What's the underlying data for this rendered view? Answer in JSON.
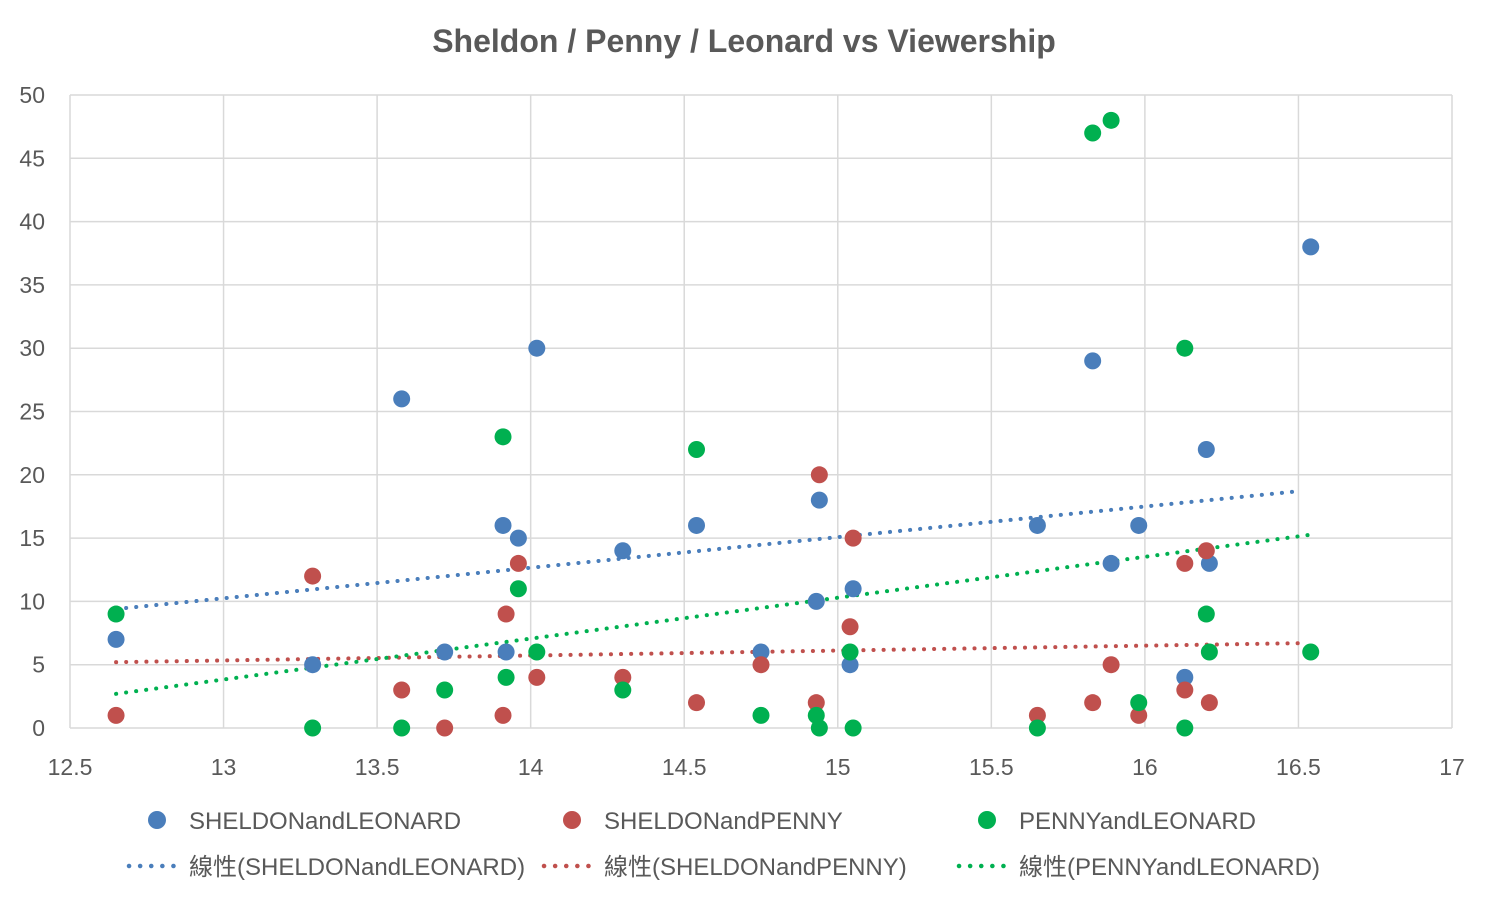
{
  "chart_data": {
    "type": "scatter",
    "title": "Sheldon / Penny / Leonard vs Viewership",
    "xlabel": "",
    "ylabel": "",
    "xlim": [
      12.5,
      17
    ],
    "ylim": [
      0,
      50
    ],
    "xticks": [
      "12.5",
      "13",
      "13.5",
      "14",
      "14.5",
      "15",
      "15.5",
      "16",
      "16.5",
      "17"
    ],
    "yticks": [
      "0",
      "5",
      "10",
      "15",
      "20",
      "25",
      "30",
      "35",
      "40",
      "45",
      "50"
    ],
    "grid": true,
    "legend_position": "bottom",
    "series": [
      {
        "name": "SHELDONandLEONARD",
        "color": "#4a7ebb",
        "trend_name": "線性(SHELDONandLEONARD)",
        "trend": [
          [
            12.65,
            9.4
          ],
          [
            16.5,
            18.7
          ]
        ],
        "points": [
          [
            12.65,
            7
          ],
          [
            13.29,
            5
          ],
          [
            13.58,
            26
          ],
          [
            13.72,
            6
          ],
          [
            13.91,
            16
          ],
          [
            13.92,
            6
          ],
          [
            13.96,
            15
          ],
          [
            14.02,
            30
          ],
          [
            14.3,
            14
          ],
          [
            14.54,
            16
          ],
          [
            14.75,
            6
          ],
          [
            14.93,
            10
          ],
          [
            14.94,
            18
          ],
          [
            15.05,
            11
          ],
          [
            15.04,
            5
          ],
          [
            15.65,
            16
          ],
          [
            15.83,
            29
          ],
          [
            15.89,
            13
          ],
          [
            15.98,
            16
          ],
          [
            16.13,
            4
          ],
          [
            16.2,
            22
          ],
          [
            16.21,
            13
          ],
          [
            16.54,
            38
          ]
        ]
      },
      {
        "name": "SHELDONandPENNY",
        "color": "#c0504d",
        "trend_name": "線性(SHELDONandPENNY)",
        "trend": [
          [
            12.65,
            5.2
          ],
          [
            16.5,
            6.7
          ]
        ],
        "points": [
          [
            12.65,
            1
          ],
          [
            13.29,
            12
          ],
          [
            13.58,
            3
          ],
          [
            13.72,
            0
          ],
          [
            13.92,
            9
          ],
          [
            13.91,
            1
          ],
          [
            13.96,
            13
          ],
          [
            14.02,
            4
          ],
          [
            14.3,
            4
          ],
          [
            14.54,
            2
          ],
          [
            14.75,
            5
          ],
          [
            14.93,
            2
          ],
          [
            14.94,
            20
          ],
          [
            15.05,
            15
          ],
          [
            15.04,
            8
          ],
          [
            15.65,
            1
          ],
          [
            15.83,
            2
          ],
          [
            15.89,
            5
          ],
          [
            15.98,
            1
          ],
          [
            16.13,
            13
          ],
          [
            16.13,
            3
          ],
          [
            16.2,
            14
          ],
          [
            16.21,
            2
          ]
        ]
      },
      {
        "name": "PENNYandLEONARD",
        "color": "#00b050",
        "trend_name": "線性(PENNYandLEONARD)",
        "trend": [
          [
            12.65,
            2.7
          ],
          [
            16.55,
            15.3
          ]
        ],
        "points": [
          [
            12.65,
            9
          ],
          [
            13.29,
            0
          ],
          [
            13.58,
            0
          ],
          [
            13.72,
            3
          ],
          [
            13.91,
            23
          ],
          [
            13.92,
            4
          ],
          [
            13.96,
            11
          ],
          [
            14.02,
            6
          ],
          [
            14.3,
            3
          ],
          [
            14.54,
            22
          ],
          [
            14.75,
            1
          ],
          [
            14.93,
            1
          ],
          [
            14.94,
            0
          ],
          [
            15.05,
            0
          ],
          [
            15.04,
            6
          ],
          [
            15.65,
            0
          ],
          [
            15.83,
            47
          ],
          [
            15.89,
            48
          ],
          [
            15.98,
            2
          ],
          [
            16.13,
            30
          ],
          [
            16.13,
            0
          ],
          [
            16.2,
            9
          ],
          [
            16.21,
            6
          ],
          [
            16.54,
            6
          ]
        ]
      }
    ]
  }
}
